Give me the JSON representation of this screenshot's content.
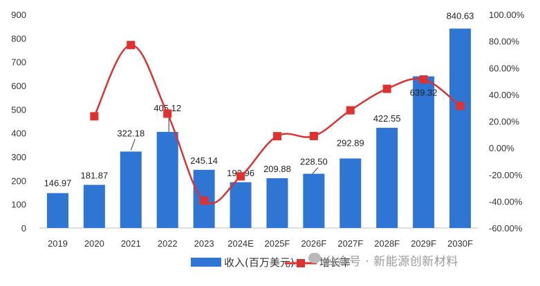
{
  "chart_data": {
    "type": "bar",
    "categories": [
      "2019",
      "2020",
      "2021",
      "2022",
      "2023",
      "2024E",
      "2025F",
      "2026F",
      "2027F",
      "2028F",
      "2029F",
      "2030F"
    ],
    "series": [
      {
        "name": "收入(百万美元)",
        "type": "bar",
        "axis": "left",
        "values": [
          146.97,
          181.87,
          322.18,
          405.12,
          245.14,
          192.96,
          209.88,
          228.5,
          292.89,
          422.55,
          639.32,
          840.63
        ],
        "labels": [
          "146.97",
          "181.87",
          "322.18",
          "405.12",
          "245.14",
          "192.96",
          "209.88",
          "228.50",
          "292.89",
          "422.55",
          "639.32",
          "840.63"
        ],
        "color": "#2e75d4"
      },
      {
        "name": "增长率",
        "type": "line",
        "axis": "right",
        "values": [
          null,
          23.7,
          77.1,
          25.7,
          -39.5,
          -21.3,
          8.8,
          8.9,
          28.2,
          44.3,
          51.3,
          31.5
        ],
        "color": "#e03131"
      }
    ],
    "y_left": {
      "min": 0,
      "max": 900,
      "ticks": [
        "0",
        "100",
        "200",
        "300",
        "400",
        "500",
        "600",
        "700",
        "800",
        "900"
      ]
    },
    "y_right": {
      "min": -60,
      "max": 100,
      "ticks": [
        "-60.00%",
        "-40.00%",
        "-20.00%",
        "0.00%",
        "20.00%",
        "40.00%",
        "60.00%",
        "80.00%",
        "100.00%"
      ]
    },
    "grid": false,
    "legend_position": "bottom"
  },
  "watermark": "公众号 · 新能源创新材料"
}
